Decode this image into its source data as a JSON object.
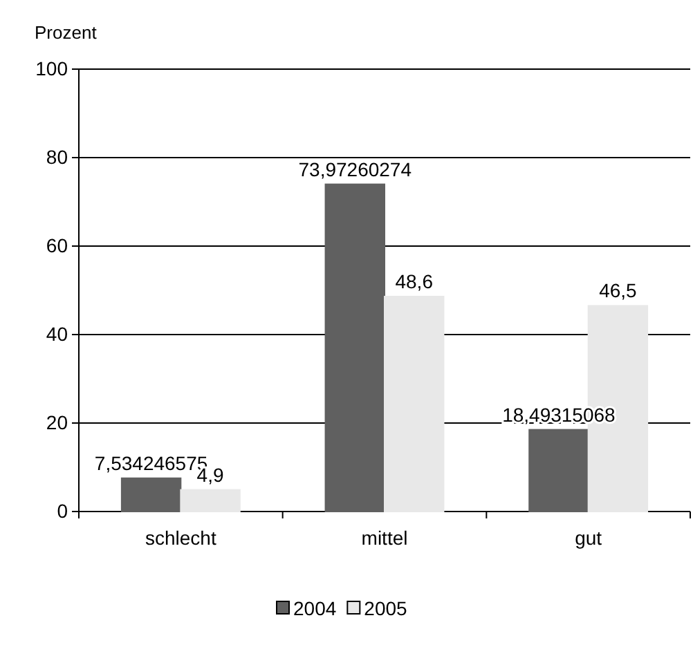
{
  "chart_data": {
    "type": "bar",
    "ylabel": "Prozent",
    "categories": [
      "schlecht",
      "mittel",
      "gut"
    ],
    "series": [
      {
        "name": "2004",
        "color": "#606060",
        "values": [
          7.534246575,
          73.97260274,
          18.49315068
        ],
        "value_labels": [
          "7,534246575",
          "73,97260274",
          "18,49315068"
        ]
      },
      {
        "name": "2005",
        "color": "#e8e8e8",
        "values": [
          4.9,
          48.6,
          46.5
        ],
        "value_labels": [
          "4,9",
          "48,6",
          "46,5"
        ]
      }
    ],
    "ylim": [
      0,
      100
    ],
    "yticks": [
      0,
      20,
      40,
      60,
      80,
      100
    ],
    "grid": "y",
    "legend": "bottom"
  }
}
